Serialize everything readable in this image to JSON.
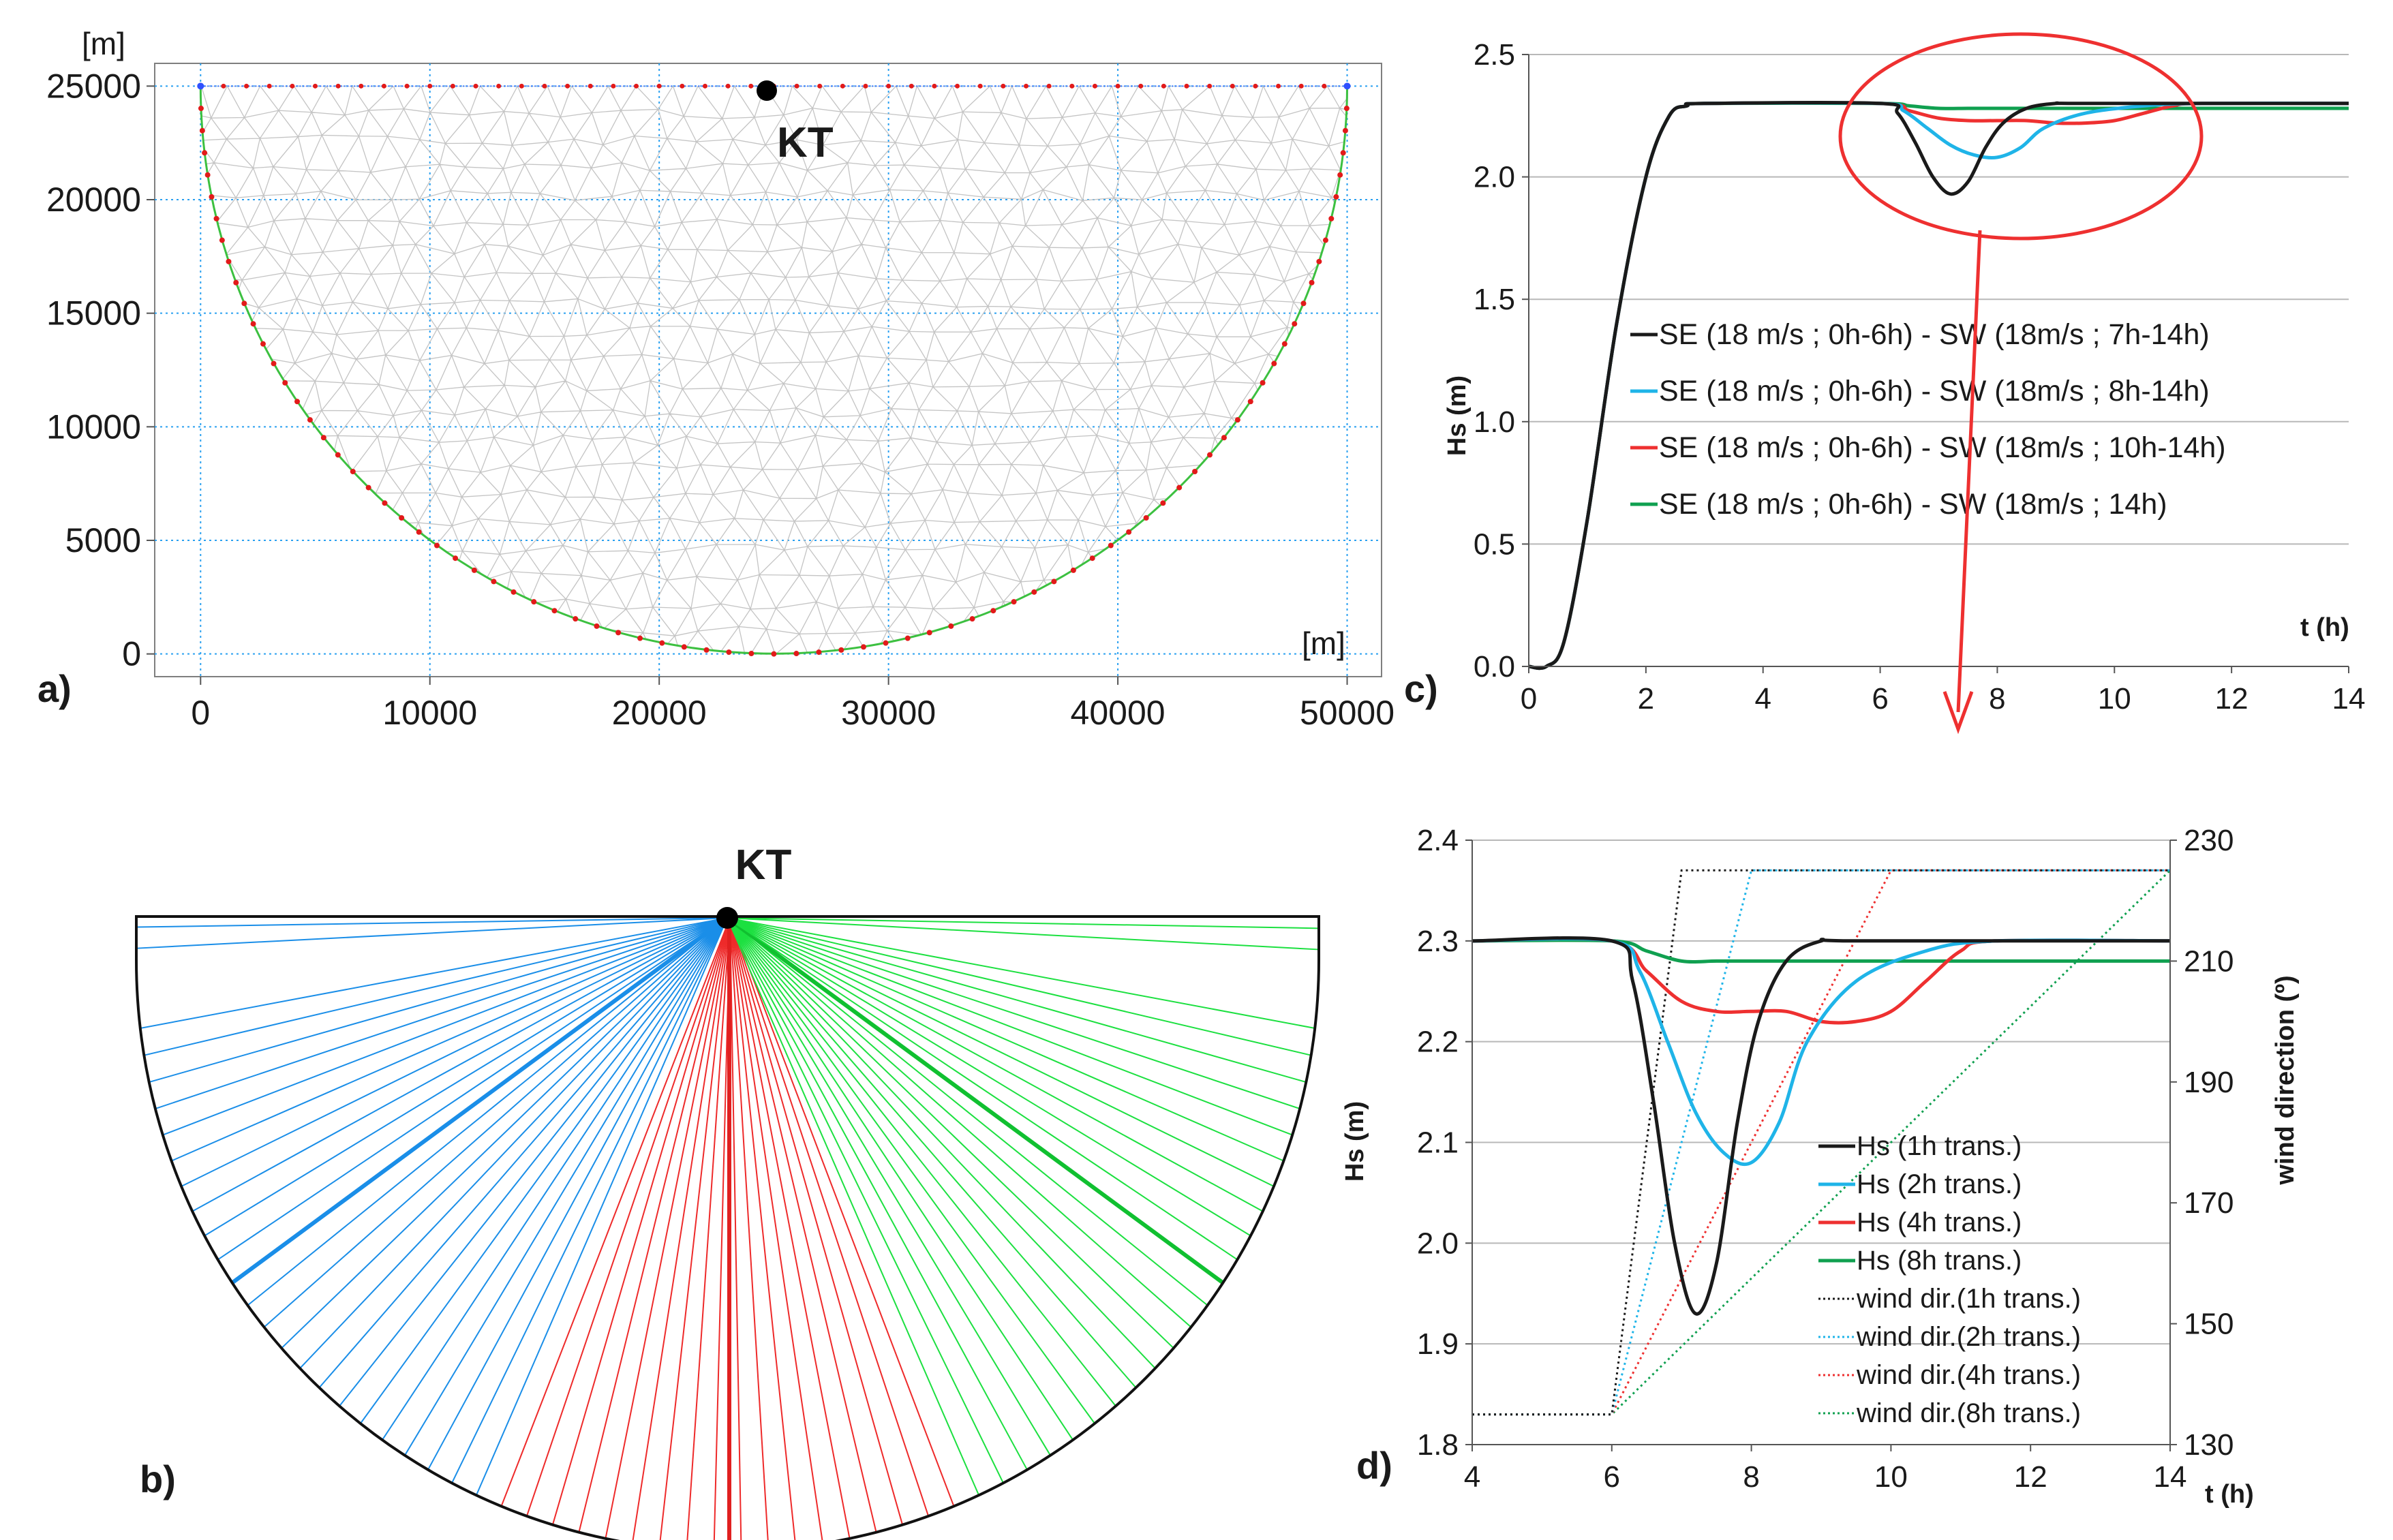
{
  "colors": {
    "black": "#1a1a1a",
    "blue": "#1fb4e8",
    "red": "#ee3030",
    "green": "#10a050",
    "gridBlue": "#2aa0f0",
    "mesh": "#c4c4c4",
    "raysBlue": "#1a8ee8",
    "raysRed": "#ee2a2a",
    "raysGreen": "#1ce040"
  },
  "chart_data": [
    {
      "id": "a",
      "panel_label": "a)",
      "type": "scatter",
      "title": "",
      "xlabel": "[m]",
      "ylabel": "[m]",
      "xlim": [
        -2000,
        51500
      ],
      "ylim": [
        -1000,
        26000
      ],
      "xticks": [
        "0",
        "10000",
        "20000",
        "30000",
        "40000",
        "50000"
      ],
      "yticks": [
        "0",
        "5000",
        "10000",
        "15000",
        "20000",
        "25000"
      ],
      "grid": true,
      "description_points": {
        "boundary": "semi-ellipse, open top boundary at y=25000",
        "station": {
          "label": "KT",
          "x": 25000,
          "y": 25000
        }
      }
    },
    {
      "id": "b",
      "panel_label": "b)",
      "type": "diagram",
      "station_label": "KT",
      "rays": {
        "blue_count": 25,
        "red_count": 18,
        "green_count": 25
      }
    },
    {
      "id": "c",
      "panel_label": "c)",
      "type": "line",
      "xlabel": "t (h)",
      "ylabel": "Hs (m)",
      "xlim": [
        0,
        14
      ],
      "ylim": [
        0,
        2.5
      ],
      "xticks": [
        "0",
        "2",
        "4",
        "6",
        "8",
        "10",
        "12",
        "14"
      ],
      "yticks": [
        "0.0",
        "0.5",
        "1.0",
        "1.5",
        "2.0",
        "2.5"
      ],
      "legend": [
        "SE (18 m/s ; 0h-6h) - SW (18m/s ; 7h-14h)",
        "SE (18 m/s ; 0h-6h) - SW (18m/s ; 8h-14h)",
        "SE (18 m/s ; 0h-6h) - SW (18m/s ; 10h-14h)",
        "SE (18 m/s ; 0h-6h) - SW (18m/s ; 14h)"
      ],
      "series": [
        {
          "name": "SW 7h-14h",
          "color": "black",
          "x": [
            0,
            0.3,
            0.6,
            1,
            1.5,
            2,
            2.4,
            2.7,
            3,
            6,
            6.3,
            6.6,
            6.9,
            7.2,
            7.5,
            7.8,
            8.1,
            8.5,
            9,
            9.5,
            14
          ],
          "y": [
            0,
            0,
            0.1,
            0.6,
            1.4,
            2.0,
            2.25,
            2.29,
            2.3,
            2.3,
            2.26,
            2.14,
            2.0,
            1.93,
            1.98,
            2.12,
            2.22,
            2.28,
            2.3,
            2.3,
            2.3
          ]
        },
        {
          "name": "SW 8h-14h",
          "color": "blue",
          "x": [
            0,
            0.3,
            0.6,
            1,
            1.5,
            2,
            2.4,
            2.7,
            3,
            6,
            6.4,
            6.8,
            7.2,
            7.6,
            8,
            8.4,
            8.8,
            9.5,
            10.5,
            11.5,
            14
          ],
          "y": [
            0,
            0,
            0.1,
            0.6,
            1.4,
            2.0,
            2.25,
            2.29,
            2.3,
            2.3,
            2.27,
            2.2,
            2.13,
            2.09,
            2.08,
            2.12,
            2.2,
            2.26,
            2.29,
            2.3,
            2.3
          ]
        },
        {
          "name": "SW 10h-14h",
          "color": "red",
          "x": [
            0,
            0.3,
            0.6,
            1,
            1.5,
            2,
            2.4,
            2.7,
            3,
            6,
            6.5,
            7,
            7.5,
            8,
            8.5,
            9,
            9.5,
            10,
            10.5,
            11,
            11.5,
            14
          ],
          "y": [
            0,
            0,
            0.1,
            0.6,
            1.4,
            2.0,
            2.25,
            2.29,
            2.3,
            2.3,
            2.27,
            2.24,
            2.23,
            2.23,
            2.23,
            2.22,
            2.22,
            2.23,
            2.26,
            2.29,
            2.3,
            2.3
          ]
        },
        {
          "name": "SW 14h",
          "color": "green",
          "x": [
            0,
            0.3,
            0.6,
            1,
            1.5,
            2,
            2.4,
            2.7,
            3,
            6,
            6.5,
            7,
            7.5,
            8,
            9,
            10,
            11,
            12,
            13,
            14
          ],
          "y": [
            0,
            0,
            0.1,
            0.6,
            1.4,
            2.0,
            2.25,
            2.29,
            2.3,
            2.3,
            2.29,
            2.28,
            2.28,
            2.28,
            2.28,
            2.28,
            2.28,
            2.28,
            2.28,
            2.28
          ]
        }
      ],
      "annotation": "red ellipse around 5–12 h, arrow down to t ≈ 7.5 h"
    },
    {
      "id": "d",
      "panel_label": "d)",
      "type": "line",
      "xlabel": "t (h)",
      "ylabel": "Hs (m)",
      "y2label": "wind direction (º)",
      "xlim": [
        4,
        14
      ],
      "ylim": [
        1.8,
        2.4
      ],
      "y2lim": [
        130,
        230
      ],
      "xticks": [
        "4",
        "6",
        "8",
        "10",
        "12",
        "14"
      ],
      "yticks": [
        "1.8",
        "1.9",
        "2.0",
        "2.1",
        "2.2",
        "2.3",
        "2.4"
      ],
      "y2ticks": [
        "130",
        "150",
        "170",
        "190",
        "210",
        "230"
      ],
      "legend": [
        "Hs (1h trans.)",
        "Hs (2h trans.)",
        "Hs (4h trans.)",
        "Hs (8h trans.)",
        "wind dir.(1h trans.)",
        "wind dir.(2h trans.)",
        "wind dir.(4h trans.)",
        "wind dir.(8h trans.)"
      ],
      "series": [
        {
          "name": "Hs (1h trans.)",
          "color": "black",
          "axis": "left",
          "x": [
            4,
            6,
            6.3,
            6.6,
            6.9,
            7.2,
            7.5,
            7.8,
            8.1,
            8.5,
            9,
            9.5,
            14
          ],
          "y": [
            2.3,
            2.3,
            2.26,
            2.14,
            2.0,
            1.93,
            1.98,
            2.12,
            2.22,
            2.28,
            2.3,
            2.3,
            2.3
          ]
        },
        {
          "name": "Hs (2h trans.)",
          "color": "blue",
          "axis": "left",
          "x": [
            4,
            6,
            6.4,
            6.8,
            7.2,
            7.6,
            8,
            8.4,
            8.8,
            9.5,
            10.5,
            11.5,
            14
          ],
          "y": [
            2.3,
            2.3,
            2.27,
            2.2,
            2.13,
            2.09,
            2.08,
            2.12,
            2.2,
            2.26,
            2.29,
            2.3,
            2.3
          ]
        },
        {
          "name": "Hs (4h trans.)",
          "color": "red",
          "axis": "left",
          "x": [
            4,
            6,
            6.5,
            7,
            7.5,
            8,
            8.5,
            9,
            9.5,
            10,
            10.5,
            11,
            11.5,
            14
          ],
          "y": [
            2.3,
            2.3,
            2.27,
            2.24,
            2.23,
            2.23,
            2.23,
            2.22,
            2.22,
            2.23,
            2.26,
            2.29,
            2.3,
            2.3
          ]
        },
        {
          "name": "Hs (8h trans.)",
          "color": "green",
          "axis": "left",
          "x": [
            4,
            6,
            6.5,
            7,
            7.5,
            8,
            9,
            10,
            11,
            12,
            13,
            14
          ],
          "y": [
            2.3,
            2.3,
            2.29,
            2.28,
            2.28,
            2.28,
            2.28,
            2.28,
            2.28,
            2.28,
            2.28,
            2.28
          ]
        },
        {
          "name": "wind dir.(1h trans.)",
          "color": "black",
          "axis": "right",
          "dotted": true,
          "x": [
            4,
            6,
            7,
            14
          ],
          "y": [
            135,
            135,
            225,
            225
          ]
        },
        {
          "name": "wind dir.(2h trans.)",
          "color": "blue",
          "axis": "right",
          "dotted": true,
          "x": [
            4,
            6,
            8,
            14
          ],
          "y": [
            135,
            135,
            225,
            225
          ]
        },
        {
          "name": "wind dir.(4h trans.)",
          "color": "red",
          "axis": "right",
          "dotted": true,
          "x": [
            4,
            6,
            10,
            14
          ],
          "y": [
            135,
            135,
            225,
            225
          ]
        },
        {
          "name": "wind dir.(8h trans.)",
          "color": "green",
          "axis": "right",
          "dotted": true,
          "x": [
            4,
            6,
            14
          ],
          "y": [
            135,
            135,
            225
          ]
        }
      ]
    }
  ]
}
